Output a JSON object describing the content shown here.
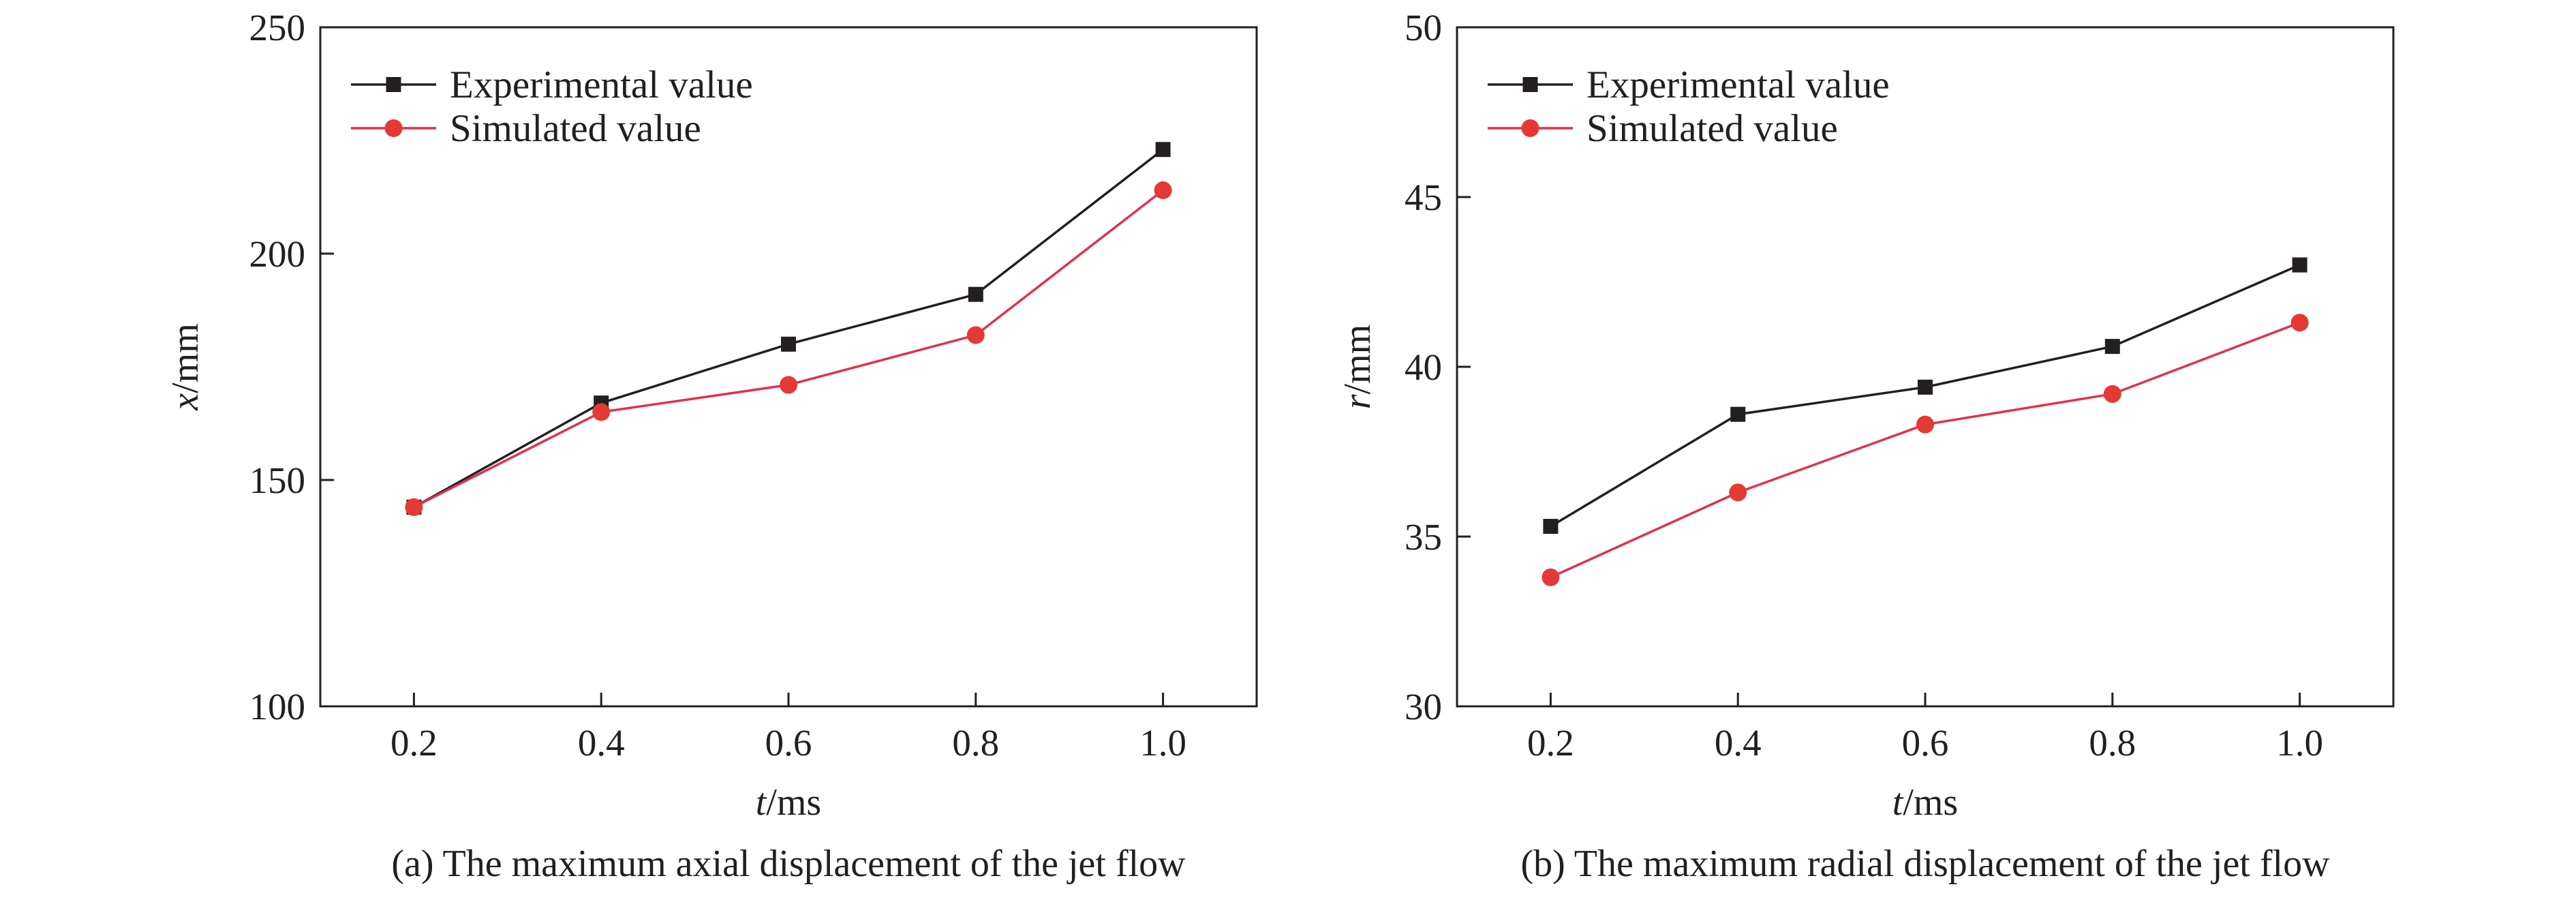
{
  "charts": [
    {
      "caption": "(a) The maximum axial displacement of the jet flow",
      "chart_data": {
        "type": "line",
        "x": [
          0.2,
          0.4,
          0.6,
          0.8,
          1.0
        ],
        "x_tick_labels": [
          "0.2",
          "0.4",
          "0.6",
          "0.8",
          "1.0"
        ],
        "y_tick_labels": [
          "100",
          "150",
          "200",
          "250"
        ],
        "xlim": [
          0.1,
          1.1
        ],
        "ylim": [
          100,
          250
        ],
        "xlabel": {
          "var": "t",
          "unit": "/ms"
        },
        "ylabel": {
          "var": "x",
          "unit": "/mm"
        },
        "legend_position": "top-left",
        "grid": false,
        "series": [
          {
            "name": "Experimental value",
            "marker": "square",
            "color": "#231f20",
            "values": [
              144,
              167,
              180,
              191,
              223
            ]
          },
          {
            "name": "Simulated value",
            "marker": "circle",
            "color": "#e0324b",
            "marker_color": "#e53935",
            "values": [
              144,
              165,
              171,
              182,
              214
            ]
          }
        ]
      }
    },
    {
      "caption": "(b) The maximum radial displacement of the jet flow",
      "chart_data": {
        "type": "line",
        "x": [
          0.2,
          0.4,
          0.6,
          0.8,
          1.0
        ],
        "x_tick_labels": [
          "0.2",
          "0.4",
          "0.6",
          "0.8",
          "1.0"
        ],
        "y_tick_labels": [
          "30",
          "35",
          "40",
          "45",
          "50"
        ],
        "xlim": [
          0.1,
          1.1
        ],
        "ylim": [
          30,
          50
        ],
        "xlabel": {
          "var": "t",
          "unit": "/ms"
        },
        "ylabel": {
          "var": "r",
          "unit": "/mm"
        },
        "legend_position": "top-left",
        "grid": false,
        "series": [
          {
            "name": "Experimental value",
            "marker": "square",
            "color": "#231f20",
            "values": [
              35.3,
              38.6,
              39.4,
              40.6,
              43.0
            ]
          },
          {
            "name": "Simulated value",
            "marker": "circle",
            "color": "#e0324b",
            "marker_color": "#e53935",
            "values": [
              33.8,
              36.3,
              38.3,
              39.2,
              41.3
            ]
          }
        ]
      }
    }
  ]
}
